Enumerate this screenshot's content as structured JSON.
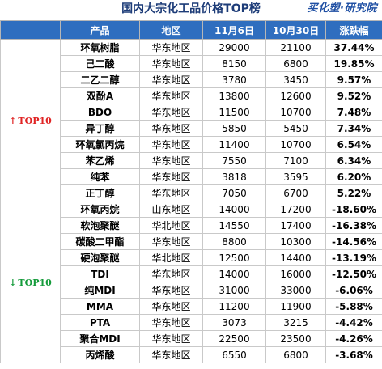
{
  "title": "国内大宗化工品价格TOP榜",
  "logo": "买化塑·研究院",
  "headers": [
    "产品",
    "地区",
    "11月6日",
    "10月30日",
    "涨跌幅"
  ],
  "groups": {
    "top": {
      "arrow": "↑",
      "label": "TOP10"
    },
    "bottom": {
      "arrow": "↓",
      "label": "TOP10"
    }
  },
  "colors": {
    "header_bg": "#2f6ebf",
    "up": "#e02424",
    "down": "#149b3a",
    "title": "#1d3c78"
  },
  "rows": [
    {
      "product": "环氧树脂",
      "region": "华东地区",
      "nov6": "29000",
      "oct30": "21100",
      "change": "37.44%"
    },
    {
      "product": "己二酸",
      "region": "华东地区",
      "nov6": "8150",
      "oct30": "6800",
      "change": "19.85%"
    },
    {
      "product": "二乙二醇",
      "region": "华东地区",
      "nov6": "3780",
      "oct30": "3450",
      "change": "9.57%"
    },
    {
      "product": "双酚A",
      "region": "华东地区",
      "nov6": "13800",
      "oct30": "12600",
      "change": "9.52%"
    },
    {
      "product": "BDO",
      "region": "华东地区",
      "nov6": "11500",
      "oct30": "10700",
      "change": "7.48%"
    },
    {
      "product": "异丁醇",
      "region": "华东地区",
      "nov6": "5850",
      "oct30": "5450",
      "change": "7.34%"
    },
    {
      "product": "环氧氯丙烷",
      "region": "华东地区",
      "nov6": "11400",
      "oct30": "10700",
      "change": "6.54%"
    },
    {
      "product": "苯乙烯",
      "region": "华东地区",
      "nov6": "7550",
      "oct30": "7100",
      "change": "6.34%"
    },
    {
      "product": "纯苯",
      "region": "华东地区",
      "nov6": "3818",
      "oct30": "3595",
      "change": "6.20%"
    },
    {
      "product": "正丁醇",
      "region": "华东地区",
      "nov6": "7050",
      "oct30": "6700",
      "change": "5.22%"
    },
    {
      "product": "环氧丙烷",
      "region": "山东地区",
      "nov6": "14000",
      "oct30": "17200",
      "change": "-18.60%"
    },
    {
      "product": "软泡聚醚",
      "region": "华北地区",
      "nov6": "14550",
      "oct30": "17400",
      "change": "-16.38%"
    },
    {
      "product": "碳酸二甲酯",
      "region": "华东地区",
      "nov6": "8800",
      "oct30": "10300",
      "change": "-14.56%"
    },
    {
      "product": "硬泡聚醚",
      "region": "华北地区",
      "nov6": "12500",
      "oct30": "14400",
      "change": "-13.19%"
    },
    {
      "product": "TDI",
      "region": "华东地区",
      "nov6": "14000",
      "oct30": "16000",
      "change": "-12.50%"
    },
    {
      "product": "纯MDI",
      "region": "华东地区",
      "nov6": "31000",
      "oct30": "33000",
      "change": "-6.06%"
    },
    {
      "product": "MMA",
      "region": "华东地区",
      "nov6": "11200",
      "oct30": "11900",
      "change": "-5.88%"
    },
    {
      "product": "PTA",
      "region": "华东地区",
      "nov6": "3073",
      "oct30": "3215",
      "change": "-4.42%"
    },
    {
      "product": "聚合MDI",
      "region": "华东地区",
      "nov6": "22500",
      "oct30": "23500",
      "change": "-4.26%"
    },
    {
      "product": "丙烯酸",
      "region": "华东地区",
      "nov6": "6550",
      "oct30": "6800",
      "change": "-3.68%"
    }
  ]
}
